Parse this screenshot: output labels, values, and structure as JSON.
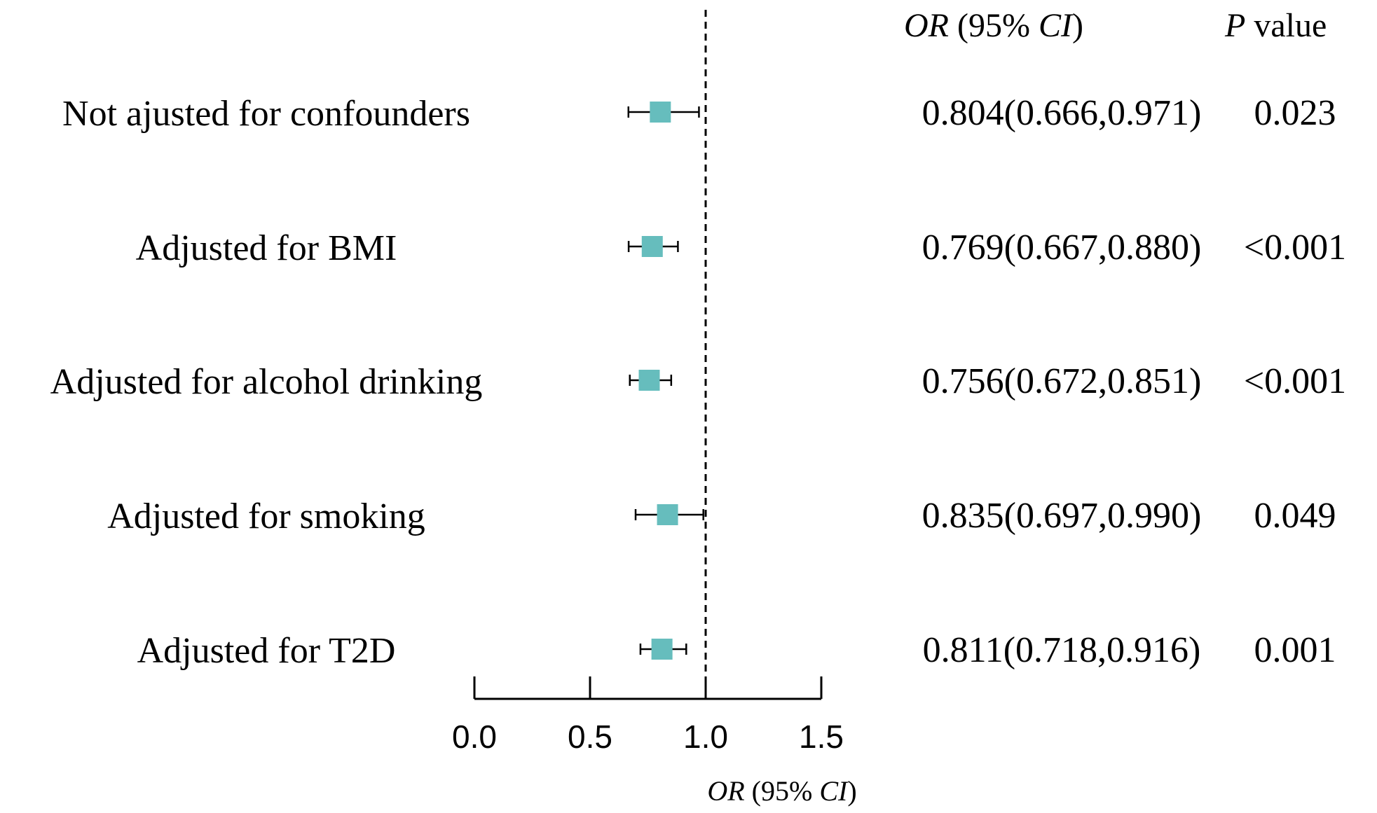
{
  "header": {
    "or_ci": {
      "or": "OR",
      "open": " (95% ",
      "ci": "CI",
      "close": ")"
    },
    "p_value": {
      "p": "P",
      "rest": " value"
    }
  },
  "chart_data": {
    "type": "forest",
    "title": "",
    "xlabel": {
      "or": "OR",
      "open": " (95% ",
      "ci": "CI",
      "close": ")"
    },
    "xlim": [
      0,
      1.5
    ],
    "xticks": [
      "0.0",
      "0.5",
      "1.0",
      "1.5"
    ],
    "reference_line": 1.0,
    "marker_color": "#66bdbd",
    "rows": [
      {
        "label": "Not ajusted for confounders",
        "or": 0.804,
        "lo": 0.666,
        "hi": 0.971,
        "or_text": "0.804(0.666,0.971)",
        "p_text": "0.023"
      },
      {
        "label": "Adjusted for BMI",
        "or": 0.769,
        "lo": 0.667,
        "hi": 0.88,
        "or_text": "0.769(0.667,0.880)",
        "p_text": "<0.001"
      },
      {
        "label": "Adjusted for alcohol drinking",
        "or": 0.756,
        "lo": 0.672,
        "hi": 0.851,
        "or_text": "0.756(0.672,0.851)",
        "p_text": "<0.001"
      },
      {
        "label": "Adjusted for smoking",
        "or": 0.835,
        "lo": 0.697,
        "hi": 0.99,
        "or_text": "0.835(0.697,0.990)",
        "p_text": "0.049"
      },
      {
        "label": "Adjusted for T2D",
        "or": 0.811,
        "lo": 0.718,
        "hi": 0.916,
        "or_text": "0.811(0.718,0.916)",
        "p_text": "0.001"
      }
    ]
  }
}
